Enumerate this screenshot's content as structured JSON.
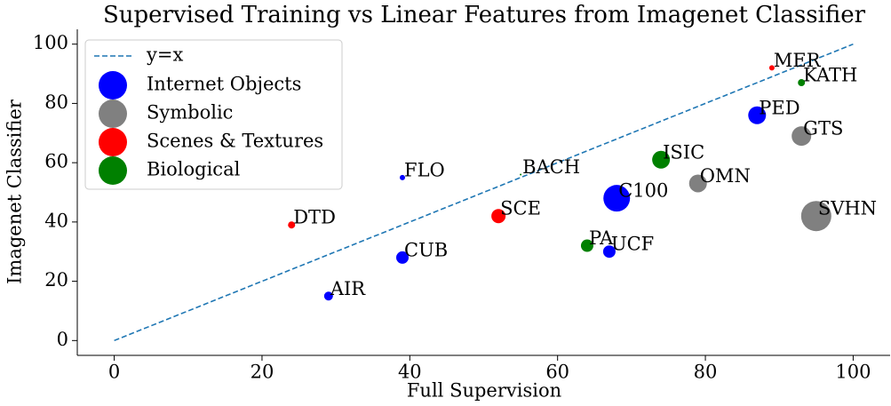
{
  "chart_data": {
    "type": "scatter",
    "title": "Supervised Training vs Linear Features from Imagenet Classifier",
    "x_label": "Full Supervision",
    "y_label": "Imagenet Classifier",
    "xlim": [
      -5,
      105
    ],
    "ylim": [
      -5,
      105
    ],
    "xticks": [
      0,
      20,
      40,
      60,
      80,
      100
    ],
    "yticks": [
      0,
      20,
      40,
      60,
      80,
      100
    ],
    "legend": "upper left",
    "reference_line": {
      "name": "y=x",
      "color": "#1f77b4",
      "x": [
        0,
        100
      ],
      "values": [
        0,
        100
      ]
    },
    "series": [
      {
        "name": "Internet Objects",
        "color": "#0000ff",
        "labels": [
          "AIR",
          "CUB",
          "FLO",
          "UCF",
          "C100",
          "PED"
        ],
        "x": [
          29,
          39,
          39,
          67,
          68,
          87
        ],
        "values": [
          15,
          28,
          55,
          30,
          48,
          76
        ],
        "sizes": [
          5,
          7,
          3,
          7,
          15,
          10
        ]
      },
      {
        "name": "Symbolic",
        "color": "#808080",
        "labels": [
          "OMN",
          "GTS",
          "SVHN"
        ],
        "x": [
          79,
          93,
          95
        ],
        "values": [
          53,
          69,
          42
        ],
        "sizes": [
          10,
          11,
          17
        ]
      },
      {
        "name": "Scenes & Textures",
        "color": "#ff0000",
        "labels": [
          "DTD",
          "SCE",
          "MER"
        ],
        "x": [
          24,
          52,
          89
        ],
        "values": [
          39,
          42,
          92
        ],
        "sizes": [
          4,
          8,
          3
        ]
      },
      {
        "name": "Biological",
        "color": "#008000",
        "labels": [
          "BACH",
          "PA",
          "ISIC",
          "KATH"
        ],
        "x": [
          55,
          64,
          74,
          93
        ],
        "values": [
          56,
          32,
          61,
          87
        ],
        "sizes": [
          1,
          7,
          10,
          4
        ]
      }
    ]
  }
}
